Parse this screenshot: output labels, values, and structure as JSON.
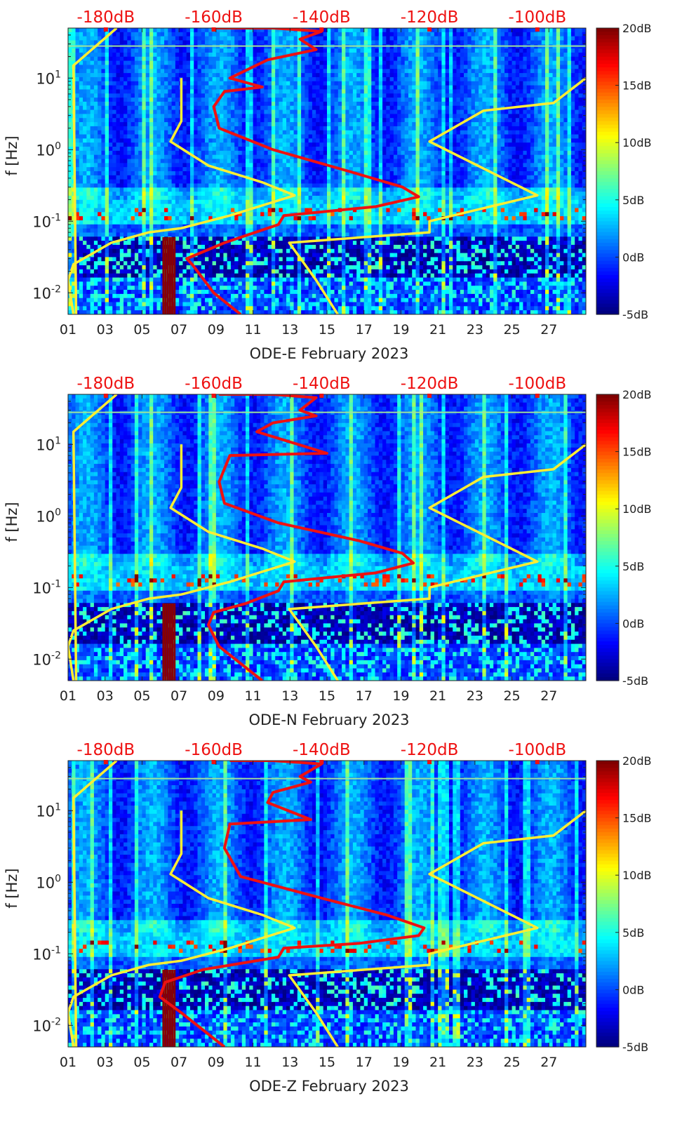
{
  "chart_data": [
    {
      "type": "heatmap",
      "title": "",
      "xlabel": "ODE-E February 2023",
      "ylabel": "f [Hz]",
      "x_range_days": [
        1,
        29
      ],
      "x_ticks": [
        "01",
        "03",
        "05",
        "07",
        "09",
        "11",
        "13",
        "15",
        "17",
        "19",
        "21",
        "23",
        "25",
        "27"
      ],
      "y_range_hz": [
        0.005,
        50
      ],
      "y_tick_labels": [
        {
          "base": "10",
          "exp": "1"
        },
        {
          "base": "10",
          "exp": "0"
        },
        {
          "base": "10",
          "exp": "-1"
        },
        {
          "base": "10",
          "exp": "-2"
        }
      ],
      "top_axis_labels": [
        "-180dB",
        "-160dB",
        "-140dB",
        "-120dB",
        "-100dB"
      ],
      "top_axis_range_db": [
        -187,
        -91
      ],
      "colorbar": {
        "min": -5,
        "max": 20,
        "ticks": [
          "20dB",
          "15dB",
          "10dB",
          "5dB",
          "0dB",
          "-5dB"
        ]
      },
      "series": [
        {
          "name": "spectral-floor-model",
          "color": "#ffee33",
          "points_db_hz": [
            [
              -178,
              50
            ],
            [
              -186,
              15
            ],
            [
              -185.5,
              0.005
            ]
          ]
        },
        {
          "name": "noise-model-yellow-left",
          "color": "#ffee33",
          "points_db_hz": [
            [
              -166,
              10
            ],
            [
              -166,
              2.5
            ],
            [
              -168,
              1.3
            ],
            [
              -161,
              0.6
            ],
            [
              -151,
              0.35
            ],
            [
              -145,
              0.23
            ],
            [
              -157,
              0.12
            ],
            [
              -166,
              0.08
            ],
            [
              -172,
              0.07
            ],
            [
              -179,
              0.05
            ],
            [
              -186,
              0.025
            ],
            [
              -187,
              0.015
            ],
            [
              -186,
              0.005
            ]
          ]
        },
        {
          "name": "noise-model-yellow-right",
          "color": "#ffee33",
          "points_db_hz": [
            [
              -91,
              10
            ],
            [
              -97,
              4.5
            ],
            [
              -110,
              3.5
            ],
            [
              -120,
              1.3
            ],
            [
              -100,
              0.23
            ],
            [
              -112,
              0.14
            ],
            [
              -120,
              0.1
            ],
            [
              -120,
              0.07
            ],
            [
              -132,
              0.06
            ],
            [
              -146,
              0.05
            ],
            [
              -141,
              0.015
            ],
            [
              -137,
              0.005
            ]
          ]
        },
        {
          "name": "psd-median-red",
          "color": "#ee1111",
          "points_db_hz": [
            [
              -160,
              50
            ],
            [
              -149,
              50
            ],
            [
              -140,
              45
            ],
            [
              -144,
              35
            ],
            [
              -141,
              25
            ],
            [
              -150,
              18
            ],
            [
              -157,
              10
            ],
            [
              -151,
              7.5
            ],
            [
              -158,
              6.5
            ],
            [
              -160,
              4
            ],
            [
              -159,
              2
            ],
            [
              -149,
              1
            ],
            [
              -135,
              0.5
            ],
            [
              -125,
              0.3
            ],
            [
              -122,
              0.22
            ],
            [
              -130,
              0.16
            ],
            [
              -147,
              0.12
            ],
            [
              -148,
              0.09
            ],
            [
              -158,
              0.05
            ],
            [
              -165,
              0.03
            ],
            [
              -164,
              0.025
            ],
            [
              -160,
              0.01
            ],
            [
              -155,
              0.005
            ]
          ]
        }
      ]
    },
    {
      "type": "heatmap",
      "title": "",
      "xlabel": "ODE-N February 2023",
      "ylabel": "f [Hz]",
      "x_range_days": [
        1,
        29
      ],
      "x_ticks": [
        "01",
        "03",
        "05",
        "07",
        "09",
        "11",
        "13",
        "15",
        "17",
        "19",
        "21",
        "23",
        "25",
        "27"
      ],
      "y_range_hz": [
        0.005,
        50
      ],
      "y_tick_labels": [
        {
          "base": "10",
          "exp": "1"
        },
        {
          "base": "10",
          "exp": "0"
        },
        {
          "base": "10",
          "exp": "-1"
        },
        {
          "base": "10",
          "exp": "-2"
        }
      ],
      "top_axis_labels": [
        "-180dB",
        "-160dB",
        "-140dB",
        "-120dB",
        "-100dB"
      ],
      "top_axis_range_db": [
        -187,
        -91
      ],
      "colorbar": {
        "min": -5,
        "max": 20,
        "ticks": [
          "20dB",
          "15dB",
          "10dB",
          "5dB",
          "0dB",
          "-5dB"
        ]
      },
      "series": [
        {
          "name": "spectral-floor-model",
          "color": "#ffee33",
          "points_db_hz": [
            [
              -178,
              50
            ],
            [
              -186,
              15
            ],
            [
              -185.5,
              0.005
            ]
          ]
        },
        {
          "name": "noise-model-yellow-left",
          "color": "#ffee33",
          "points_db_hz": [
            [
              -166,
              10
            ],
            [
              -166,
              2.5
            ],
            [
              -168,
              1.3
            ],
            [
              -161,
              0.6
            ],
            [
              -151,
              0.35
            ],
            [
              -145,
              0.23
            ],
            [
              -157,
              0.12
            ],
            [
              -166,
              0.08
            ],
            [
              -172,
              0.07
            ],
            [
              -179,
              0.05
            ],
            [
              -186,
              0.025
            ],
            [
              -187,
              0.015
            ],
            [
              -186,
              0.005
            ]
          ]
        },
        {
          "name": "noise-model-yellow-right",
          "color": "#ffee33",
          "points_db_hz": [
            [
              -91,
              10
            ],
            [
              -97,
              4.5
            ],
            [
              -110,
              3.5
            ],
            [
              -120,
              1.3
            ],
            [
              -100,
              0.23
            ],
            [
              -112,
              0.14
            ],
            [
              -120,
              0.1
            ],
            [
              -120,
              0.07
            ],
            [
              -132,
              0.06
            ],
            [
              -146,
              0.05
            ],
            [
              -141,
              0.015
            ],
            [
              -137,
              0.005
            ]
          ]
        },
        {
          "name": "psd-median-red",
          "color": "#ee1111",
          "points_db_hz": [
            [
              -159,
              50
            ],
            [
              -149,
              50
            ],
            [
              -141,
              45
            ],
            [
              -144,
              30
            ],
            [
              -141,
              25
            ],
            [
              -149,
              20
            ],
            [
              -152,
              15
            ],
            [
              -139,
              7.5
            ],
            [
              -157,
              7
            ],
            [
              -159,
              3
            ],
            [
              -158,
              1.5
            ],
            [
              -148,
              0.8
            ],
            [
              -133,
              0.45
            ],
            [
              -125,
              0.3
            ],
            [
              -123,
              0.22
            ],
            [
              -130,
              0.16
            ],
            [
              -147,
              0.12
            ],
            [
              -148,
              0.09
            ],
            [
              -154,
              0.06
            ],
            [
              -160,
              0.045
            ],
            [
              -161,
              0.03
            ],
            [
              -159,
              0.015
            ],
            [
              -151,
              0.005
            ]
          ]
        }
      ]
    },
    {
      "type": "heatmap",
      "title": "",
      "xlabel": "ODE-Z February 2023",
      "ylabel": "f [Hz]",
      "x_range_days": [
        1,
        29
      ],
      "x_ticks": [
        "01",
        "03",
        "05",
        "07",
        "09",
        "11",
        "13",
        "15",
        "17",
        "19",
        "21",
        "23",
        "25",
        "27"
      ],
      "y_range_hz": [
        0.005,
        50
      ],
      "y_tick_labels": [
        {
          "base": "10",
          "exp": "1"
        },
        {
          "base": "10",
          "exp": "0"
        },
        {
          "base": "10",
          "exp": "-1"
        },
        {
          "base": "10",
          "exp": "-2"
        }
      ],
      "top_axis_labels": [
        "-180dB",
        "-160dB",
        "-140dB",
        "-120dB",
        "-100dB"
      ],
      "top_axis_range_db": [
        -187,
        -91
      ],
      "colorbar": {
        "min": -5,
        "max": 20,
        "ticks": [
          "20dB",
          "15dB",
          "10dB",
          "5dB",
          "0dB",
          "-5dB"
        ]
      },
      "series": [
        {
          "name": "spectral-floor-model",
          "color": "#ffee33",
          "points_db_hz": [
            [
              -178,
              50
            ],
            [
              -186,
              15
            ],
            [
              -185.5,
              0.005
            ]
          ]
        },
        {
          "name": "noise-model-yellow-left",
          "color": "#ffee33",
          "points_db_hz": [
            [
              -166,
              10
            ],
            [
              -166,
              2.5
            ],
            [
              -168,
              1.3
            ],
            [
              -161,
              0.6
            ],
            [
              -151,
              0.35
            ],
            [
              -145,
              0.23
            ],
            [
              -157,
              0.12
            ],
            [
              -166,
              0.08
            ],
            [
              -172,
              0.07
            ],
            [
              -179,
              0.05
            ],
            [
              -186,
              0.025
            ],
            [
              -187,
              0.015
            ],
            [
              -186,
              0.005
            ]
          ]
        },
        {
          "name": "noise-model-yellow-right",
          "color": "#ffee33",
          "points_db_hz": [
            [
              -91,
              10
            ],
            [
              -97,
              4.5
            ],
            [
              -110,
              3.5
            ],
            [
              -120,
              1.3
            ],
            [
              -100,
              0.23
            ],
            [
              -112,
              0.14
            ],
            [
              -120,
              0.1
            ],
            [
              -120,
              0.07
            ],
            [
              -132,
              0.06
            ],
            [
              -146,
              0.05
            ],
            [
              -141,
              0.015
            ],
            [
              -137,
              0.005
            ]
          ]
        },
        {
          "name": "psd-median-red",
          "color": "#ee1111",
          "points_db_hz": [
            [
              -157,
              50
            ],
            [
              -149,
              50
            ],
            [
              -140,
              45
            ],
            [
              -144,
              30
            ],
            [
              -142,
              25
            ],
            [
              -149,
              18
            ],
            [
              -150,
              13
            ],
            [
              -142,
              7.5
            ],
            [
              -157,
              6.5
            ],
            [
              -158,
              3
            ],
            [
              -155,
              1.2
            ],
            [
              -140,
              0.6
            ],
            [
              -128,
              0.35
            ],
            [
              -121,
              0.23
            ],
            [
              -122,
              0.18
            ],
            [
              -133,
              0.14
            ],
            [
              -147,
              0.12
            ],
            [
              -148,
              0.09
            ],
            [
              -162,
              0.06
            ],
            [
              -169,
              0.04
            ],
            [
              -170,
              0.025
            ],
            [
              -166,
              0.015
            ],
            [
              -158,
              0.005
            ]
          ]
        }
      ]
    }
  ]
}
